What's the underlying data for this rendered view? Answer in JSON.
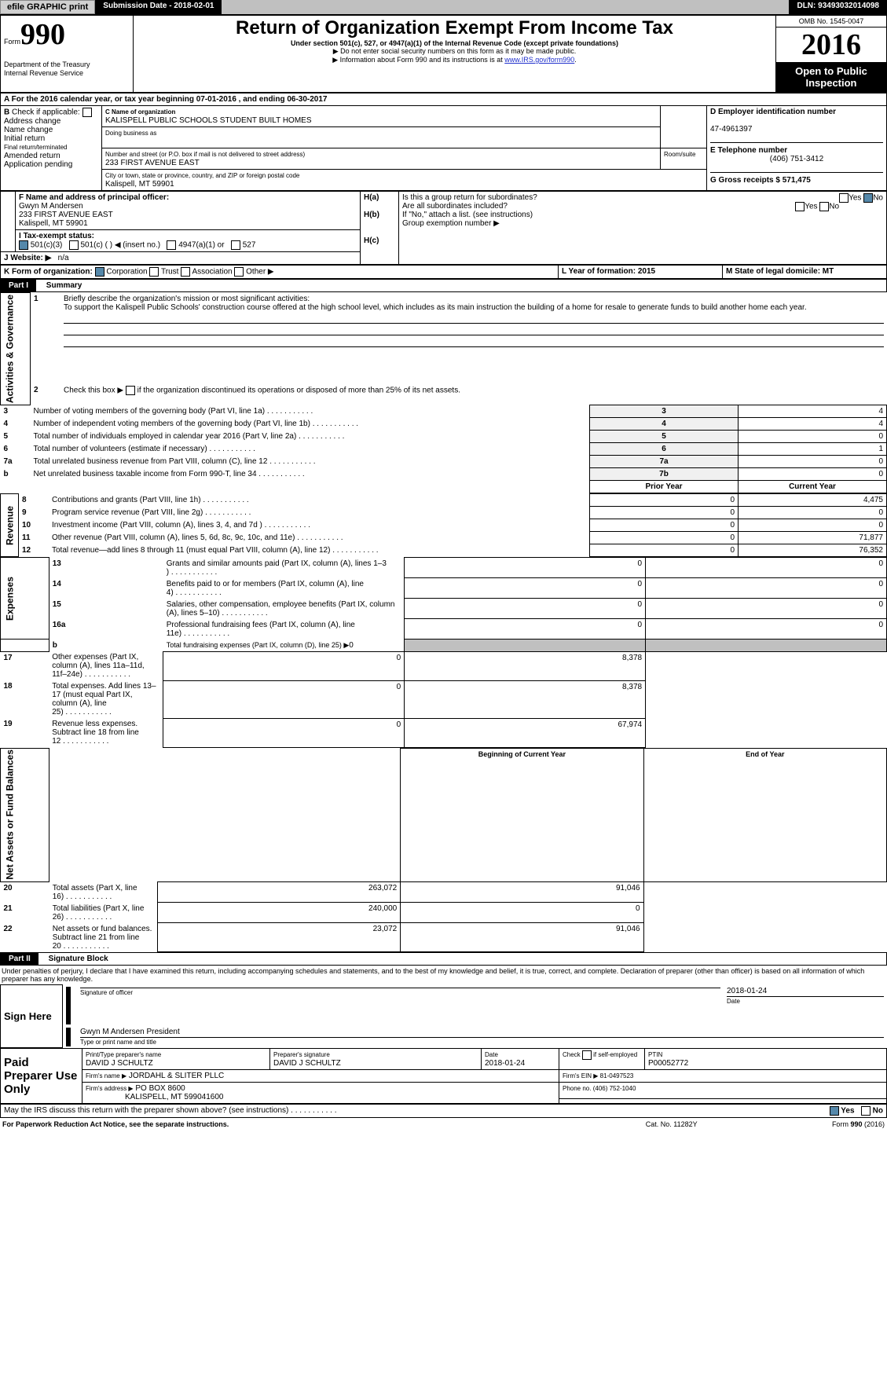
{
  "topbar": {
    "efile": "efile GRAPHIC print",
    "submission_date_label": "Submission Date - 2018-02-01",
    "dln": "DLN: 93493032014098"
  },
  "header": {
    "form_label": "Form",
    "form_number": "990",
    "dept": "Department of the Treasury",
    "irs": "Internal Revenue Service",
    "title": "Return of Organization Exempt From Income Tax",
    "subtitle1": "Under section 501(c), 527, or 4947(a)(1) of the Internal Revenue Code (except private foundations)",
    "subtitle2": "▶ Do not enter social security numbers on this form as it may be made public.",
    "subtitle3": "▶ Information about Form 990 and its instructions is at ",
    "subtitle3_link": "www.IRS.gov/form990",
    "omb": "OMB No. 1545-0047",
    "year": "2016",
    "open": "Open to Public Inspection"
  },
  "sectionA": {
    "tax_year_line": "For the 2016 calendar year, or tax year beginning 07-01-2016     , and ending 06-30-2017",
    "b_check_label": "Check if applicable:",
    "address_change": "Address change",
    "name_change": "Name change",
    "initial_return": "Initial return",
    "final_return": "Final return/terminated",
    "amended_return": "Amended return",
    "application_pending": "Application pending",
    "c_name_label": "C Name of organization",
    "c_name": "KALISPELL PUBLIC SCHOOLS STUDENT BUILT HOMES",
    "dba_label": "Doing business as",
    "street_label": "Number and street (or P.O. box if mail is not delivered to street address)",
    "room_label": "Room/suite",
    "street": "233 FIRST AVENUE EAST",
    "city_label": "City or town, state or province, country, and ZIP or foreign postal code",
    "city": "Kalispell, MT  59901",
    "d_ein_label": "D Employer identification number",
    "d_ein": "47-4961397",
    "e_phone_label": "E Telephone number",
    "e_phone": "(406) 751-3412",
    "g_gross_label": "G Gross receipts $ 571,475",
    "f_officer_label": "F  Name and address of principal officer:",
    "f_name": "Gwyn M Andersen",
    "f_street": "233 FIRST AVENUE EAST",
    "f_city": "Kalispell, MT  59901",
    "i_label": "Tax-exempt status:",
    "i_501c3": "501(c)(3)",
    "i_501c": "501(c) ( ) ◀ (insert no.)",
    "i_4947": "4947(a)(1) or",
    "i_527": "527",
    "j_website_label": "Website: ▶",
    "j_website": "n/a",
    "h_a": "H(a)",
    "h_a_text": "Is this a group return for subordinates?",
    "h_b": "H(b)",
    "h_b_text": "Are all subordinates included?",
    "h_b_note": "If \"No,\" attach a list. (see instructions)",
    "h_c": "H(c)",
    "h_c_text": "Group exemption number ▶",
    "yes": "Yes",
    "no": "No",
    "k_label": "K Form of organization:",
    "k_corp": "Corporation",
    "k_trust": "Trust",
    "k_assoc": "Association",
    "k_other": "Other ▶",
    "l_label": "L Year of formation: 2015",
    "m_label": "M State of legal domicile: MT"
  },
  "part1": {
    "label": "Part I",
    "title": "Summary",
    "line1_label": "1",
    "line1_text": "Briefly describe the organization's mission or most significant activities:",
    "line1_value": "To support the Kalispell Public Schools' construction course offered at the high school level, which includes as its main instruction the building of a home for resale to generate funds to build another home each year.",
    "line2_label": "2",
    "line2_text": "Check this box ▶",
    "line2_rest": " if the organization discontinued its operations or disposed of more than 25% of its net assets.",
    "gov_label": "Activities & Governance",
    "rev_label": "Revenue",
    "exp_label": "Expenses",
    "na_label": "Net Assets or Fund Balances",
    "rows": [
      {
        "n": "3",
        "t": "Number of voting members of the governing body (Part VI, line 1a)",
        "b": "3",
        "v": "4"
      },
      {
        "n": "4",
        "t": "Number of independent voting members of the governing body (Part VI, line 1b)",
        "b": "4",
        "v": "4"
      },
      {
        "n": "5",
        "t": "Total number of individuals employed in calendar year 2016 (Part V, line 2a)",
        "b": "5",
        "v": "0"
      },
      {
        "n": "6",
        "t": "Total number of volunteers (estimate if necessary)",
        "b": "6",
        "v": "1"
      },
      {
        "n": "7a",
        "t": "Total unrelated business revenue from Part VIII, column (C), line 12",
        "b": "7a",
        "v": "0"
      },
      {
        "n": "b",
        "t": "Net unrelated business taxable income from Form 990-T, line 34",
        "b": "7b",
        "v": "0"
      }
    ],
    "prior_year": "Prior Year",
    "current_year": "Current Year",
    "rev_rows": [
      {
        "n": "8",
        "t": "Contributions and grants (Part VIII, line 1h)",
        "p": "0",
        "c": "4,475"
      },
      {
        "n": "9",
        "t": "Program service revenue (Part VIII, line 2g)",
        "p": "0",
        "c": "0"
      },
      {
        "n": "10",
        "t": "Investment income (Part VIII, column (A), lines 3, 4, and 7d )",
        "p": "0",
        "c": "0"
      },
      {
        "n": "11",
        "t": "Other revenue (Part VIII, column (A), lines 5, 6d, 8c, 9c, 10c, and 11e)",
        "p": "0",
        "c": "71,877"
      },
      {
        "n": "12",
        "t": "Total revenue—add lines 8 through 11 (must equal Part VIII, column (A), line 12)",
        "p": "0",
        "c": "76,352"
      }
    ],
    "exp_rows": [
      {
        "n": "13",
        "t": "Grants and similar amounts paid (Part IX, column (A), lines 1–3 )",
        "p": "0",
        "c": "0"
      },
      {
        "n": "14",
        "t": "Benefits paid to or for members (Part IX, column (A), line 4)",
        "p": "0",
        "c": "0"
      },
      {
        "n": "15",
        "t": "Salaries, other compensation, employee benefits (Part IX, column (A), lines 5–10)",
        "p": "0",
        "c": "0"
      },
      {
        "n": "16a",
        "t": "Professional fundraising fees (Part IX, column (A), line 11e)",
        "p": "0",
        "c": "0"
      }
    ],
    "line16b_n": "b",
    "line16b_t": "Total fundraising expenses (Part IX, column (D), line 25) ▶",
    "line16b_v": "0",
    "exp_rows2": [
      {
        "n": "17",
        "t": "Other expenses (Part IX, column (A), lines 11a–11d, 11f–24e)",
        "p": "0",
        "c": "8,378"
      },
      {
        "n": "18",
        "t": "Total expenses. Add lines 13–17 (must equal Part IX, column (A), line 25)",
        "p": "0",
        "c": "8,378"
      },
      {
        "n": "19",
        "t": "Revenue less expenses. Subtract line 18 from line 12",
        "p": "0",
        "c": "67,974"
      }
    ],
    "begin_year": "Beginning of Current Year",
    "end_year": "End of Year",
    "na_rows": [
      {
        "n": "20",
        "t": "Total assets (Part X, line 16)",
        "p": "263,072",
        "c": "91,046"
      },
      {
        "n": "21",
        "t": "Total liabilities (Part X, line 26)",
        "p": "240,000",
        "c": "0"
      },
      {
        "n": "22",
        "t": "Net assets or fund balances. Subtract line 21 from line 20",
        "p": "23,072",
        "c": "91,046"
      }
    ]
  },
  "part2": {
    "label": "Part II",
    "title": "Signature Block",
    "declaration": "Under penalties of perjury, I declare that I have examined this return, including accompanying schedules and statements, and to the best of my knowledge and belief, it is true, correct, and complete. Declaration of preparer (other than officer) is based on all information of which preparer has any knowledge.",
    "sign_here": "Sign Here",
    "sig_officer": "Signature of officer",
    "sig_date": "2018-01-24",
    "date_label": "Date",
    "sig_name": "Gwyn M Andersen  President",
    "type_name": "Type or print name and title",
    "paid": "Paid Preparer Use Only",
    "prep_name_label": "Print/Type preparer's name",
    "prep_name": "DAVID J SCHULTZ",
    "prep_sig_label": "Preparer's signature",
    "prep_sig": "DAVID J SCHULTZ",
    "prep_date_label": "Date",
    "prep_date": "2018-01-24",
    "check_self": "Check",
    "self_emp": " if self-employed",
    "ptin_label": "PTIN",
    "ptin": "P00052772",
    "firm_name_label": "Firm's name     ▶",
    "firm_name": "JORDAHL & SLITER PLLC",
    "firm_ein_label": "Firm's EIN ▶ 81-0497523",
    "firm_addr_label": "Firm's address ▶",
    "firm_addr1": "PO BOX 8600",
    "firm_addr2": "KALISPELL, MT  599041600",
    "firm_phone_label": "Phone no. (406) 752-1040",
    "discuss": "May the IRS discuss this return with the preparer shown above? (see instructions)",
    "paperwork": "For Paperwork Reduction Act Notice, see the separate instructions.",
    "catno": "Cat. No. 11282Y",
    "formfoot": "Form 990 (2016)"
  }
}
